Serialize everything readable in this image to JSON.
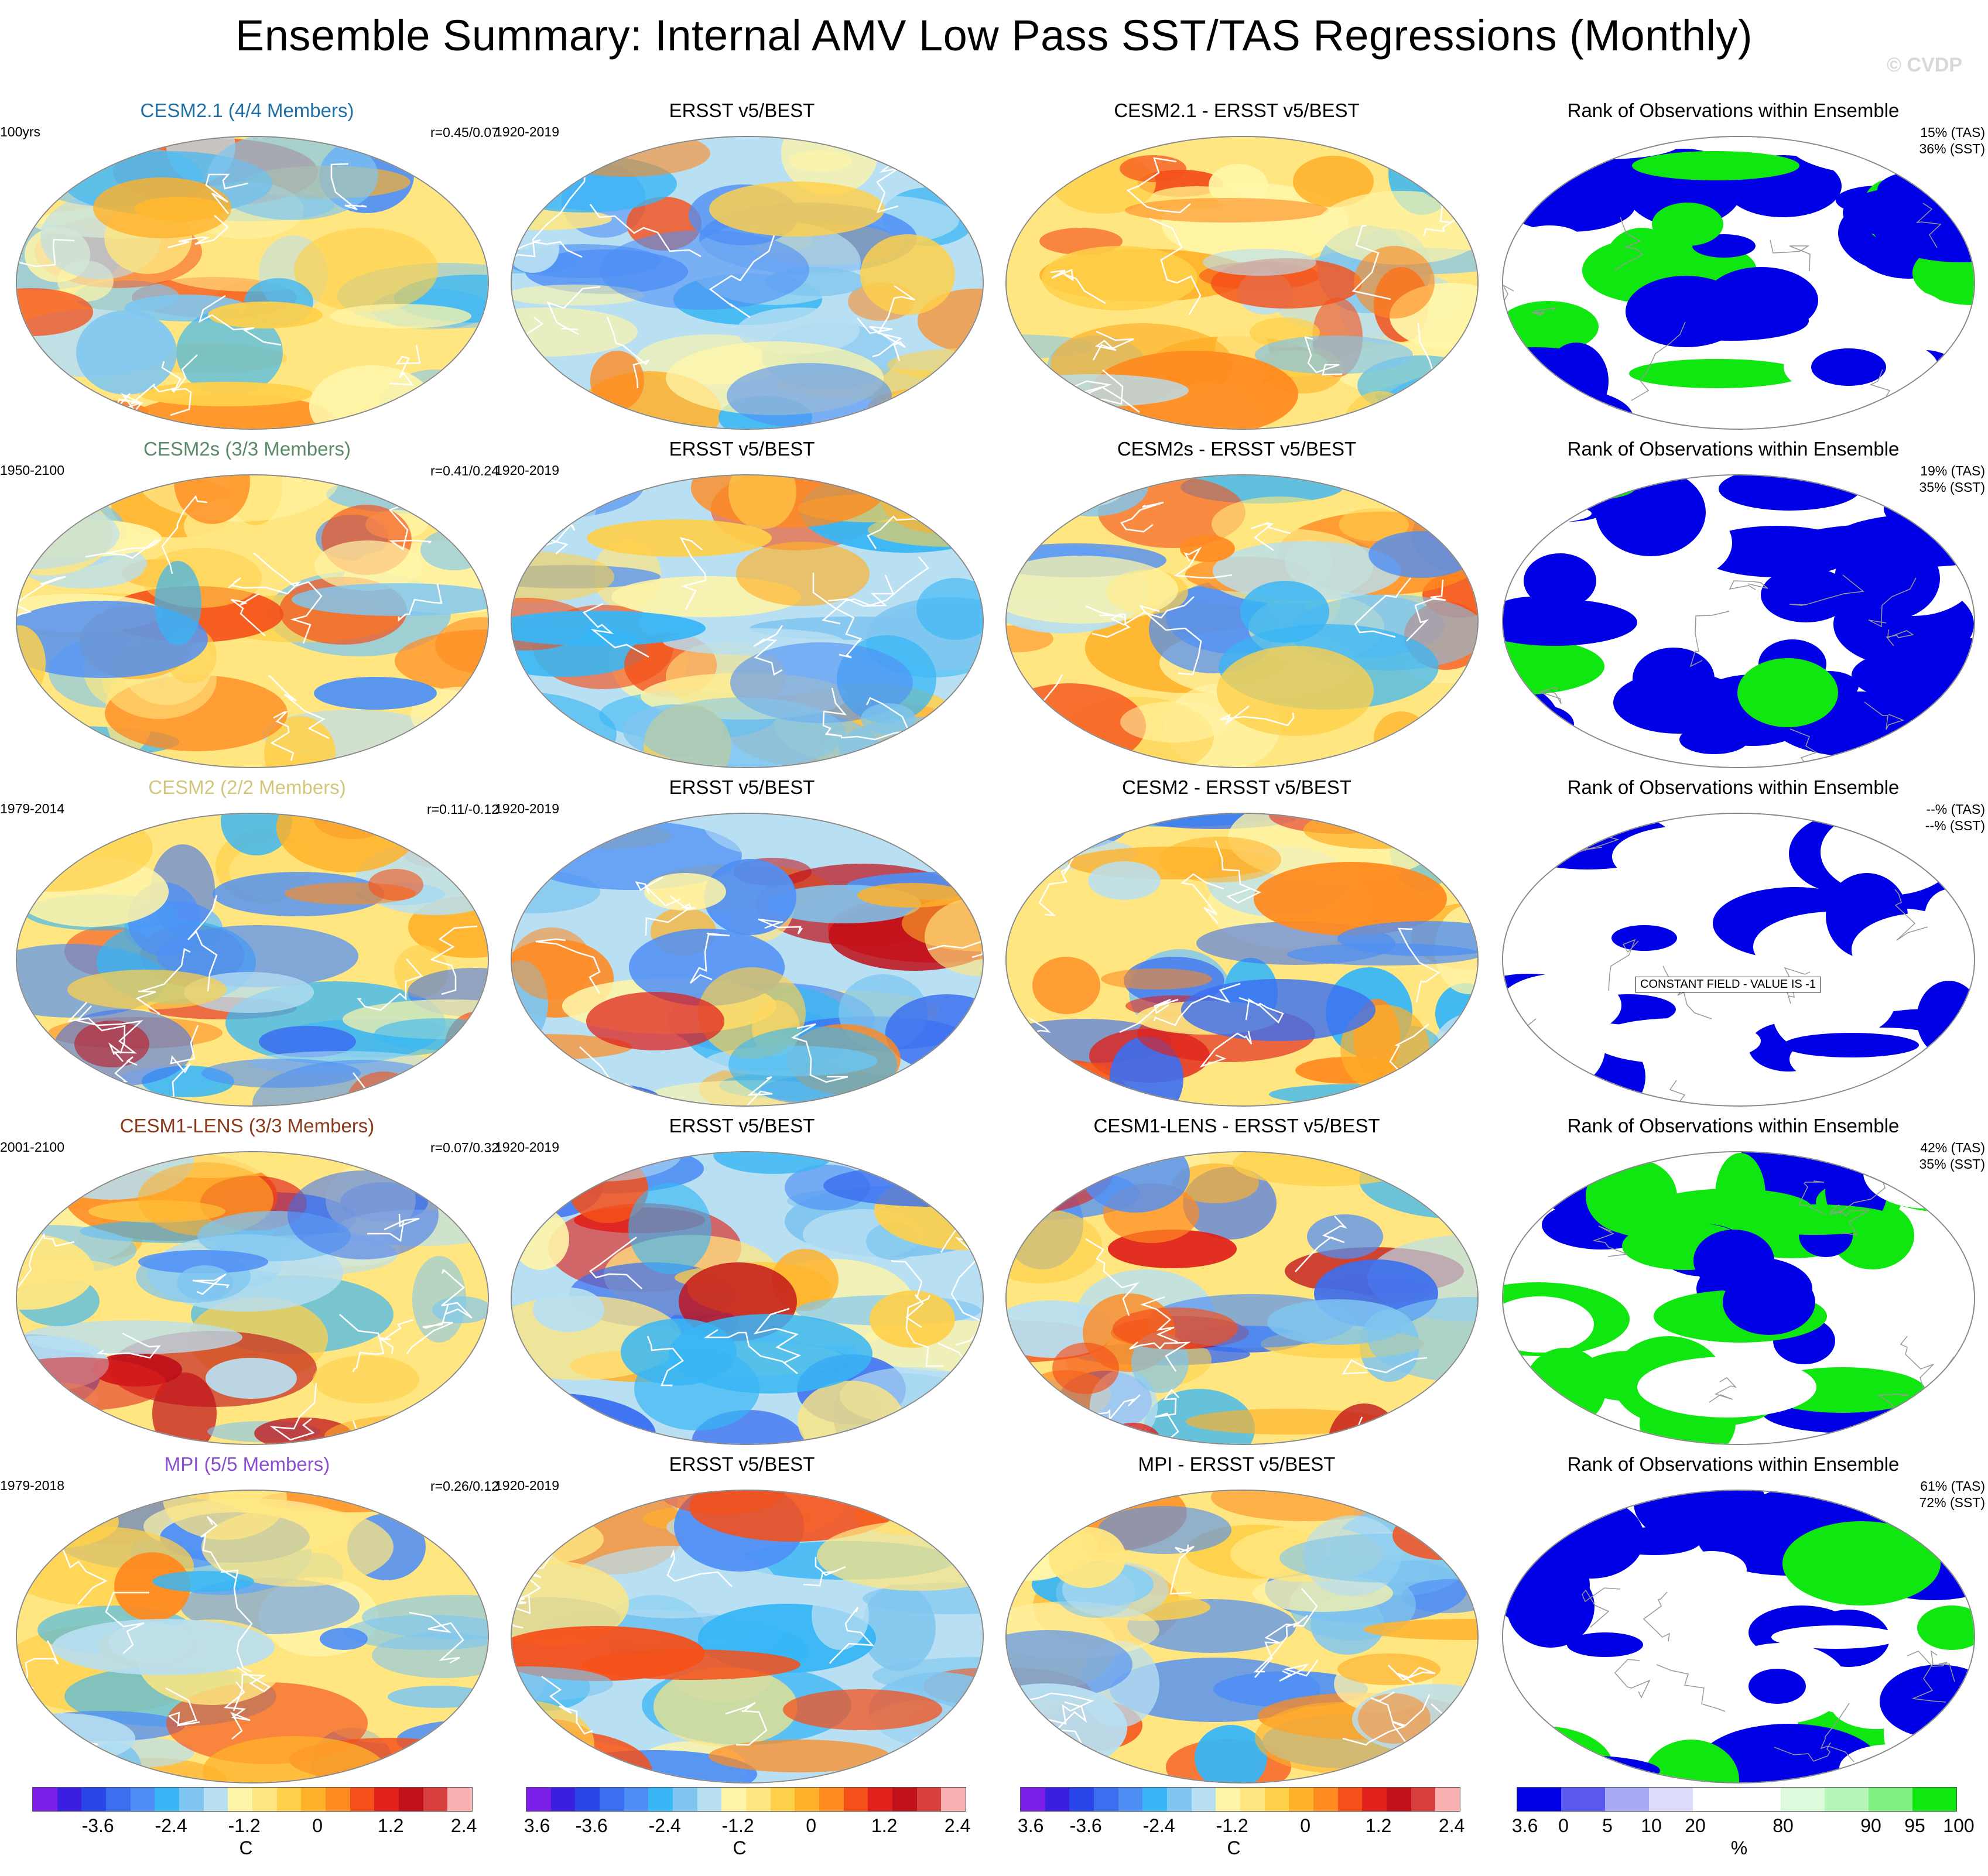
{
  "title": "Ensemble Summary: Internal AMV Low Pass SST/TAS Regressions (Monthly)",
  "credit": "© CVDP",
  "rows": [
    {
      "model_title": "CESM2.1 (4/4 Members)",
      "model_color": "#1f6fa8",
      "model_period": "100yrs",
      "correlation": "r=0.45/0.07",
      "obs_title": "ERSST v5/BEST",
      "obs_period": "1920-2019",
      "diff_title": "CESM2.1 - ERSST v5/BEST",
      "rank_title": "Rank of Observations within Ensemble",
      "rank_tas": "15% (TAS)",
      "rank_sst": "36% (SST)"
    },
    {
      "model_title": "CESM2s (3/3 Members)",
      "model_color": "#5a8a6a",
      "model_period": "1950-2100",
      "correlation": "r=0.41/0.24",
      "obs_title": "ERSST v5/BEST",
      "obs_period": "1920-2019",
      "diff_title": "CESM2s - ERSST v5/BEST",
      "rank_title": "Rank of Observations within Ensemble",
      "rank_tas": "19% (TAS)",
      "rank_sst": "35% (SST)"
    },
    {
      "model_title": "CESM2 (2/2 Members)",
      "model_color": "#d4c67a",
      "model_period": "1979-2014",
      "correlation": "r=0.11/-0.12",
      "obs_title": "ERSST v5/BEST",
      "obs_period": "1920-2019",
      "diff_title": "CESM2 - ERSST v5/BEST",
      "rank_title": "Rank of Observations within Ensemble",
      "rank_tas": "--% (TAS)",
      "rank_sst": "--% (SST)",
      "rank_note": "CONSTANT FIELD - VALUE IS -1"
    },
    {
      "model_title": "CESM1-LENS (3/3 Members)",
      "model_color": "#8b3a1a",
      "model_period": "2001-2100",
      "correlation": "r=0.07/0.32",
      "obs_title": "ERSST v5/BEST",
      "obs_period": "1920-2019",
      "diff_title": "CESM1-LENS - ERSST v5/BEST",
      "rank_title": "Rank of Observations within Ensemble",
      "rank_tas": "42% (TAS)",
      "rank_sst": "35% (SST)"
    },
    {
      "model_title": "MPI (5/5 Members)",
      "model_color": "#8a4fd0",
      "model_period": "1979-2018",
      "correlation": "r=0.26/0.12",
      "obs_title": "ERSST v5/BEST",
      "obs_period": "1920-2019",
      "diff_title": "MPI - ERSST v5/BEST",
      "rank_title": "Rank of Observations within Ensemble",
      "rank_tas": "61% (TAS)",
      "rank_sst": "72% (SST)"
    }
  ],
  "temp_colorbar": {
    "colors": [
      "#7a1ee8",
      "#3a1fe0",
      "#2a46e8",
      "#3b6ff0",
      "#4f8ff5",
      "#38b6f5",
      "#7fc6f0",
      "#b8dff2",
      "#fff5a8",
      "#ffe680",
      "#ffd04a",
      "#ffb12a",
      "#ff8a20",
      "#f5501a",
      "#e0201a",
      "#c0101a",
      "#d84040",
      "#f8b0b0"
    ],
    "ticks": [
      "-3.6",
      "-2.4",
      "-1.2",
      "0",
      "1.2",
      "2.4",
      "3.6"
    ],
    "unit": "C"
  },
  "rank_colorbar": {
    "colors": [
      "#0000e6",
      "#5a5af0",
      "#a8a8f5",
      "#dcdcfa",
      "#ffffff",
      "#ffffff",
      "#dcfadc",
      "#b8f5b8",
      "#80f080",
      "#10e610"
    ],
    "ticks": [
      "0",
      "5",
      "10",
      "20",
      "80",
      "90",
      "95",
      "100"
    ],
    "unit": "%"
  }
}
